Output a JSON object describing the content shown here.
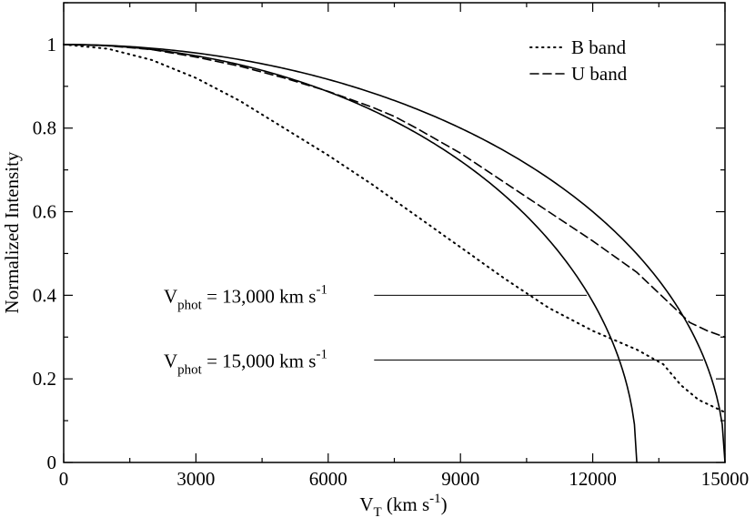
{
  "chart_data": {
    "type": "line",
    "xlabel": "V",
    "xlabel_sub": "T",
    "xlabel_units": " (km s",
    "xlabel_units_sup": "-1",
    "xlabel_units_end": ")",
    "ylabel": "Normalized Intensity",
    "xlim": [
      0,
      15000
    ],
    "ylim": [
      0,
      1.1
    ],
    "x_ticks": [
      0,
      3000,
      6000,
      9000,
      12000,
      15000
    ],
    "x_tick_labels": [
      "0",
      "3000",
      "6000",
      "9000",
      "12000",
      "15000"
    ],
    "y_ticks": [
      0,
      0.2,
      0.4,
      0.6,
      0.8,
      1.0
    ],
    "y_tick_labels": [
      "0",
      "0.2",
      "0.4",
      "0.6",
      "0.8",
      "1"
    ],
    "legend_position": "top-right",
    "grid": false,
    "series": [
      {
        "name": "B band",
        "style": "dotted",
        "x": [
          0,
          1000,
          2000,
          3000,
          4000,
          5000,
          6000,
          7000,
          8000,
          9000,
          10000,
          11000,
          12000,
          13000,
          13600,
          14000,
          14400,
          14700,
          15000
        ],
        "y": [
          1.0,
          0.99,
          0.963,
          0.92,
          0.865,
          0.8,
          0.735,
          0.665,
          0.59,
          0.515,
          0.44,
          0.37,
          0.315,
          0.27,
          0.235,
          0.185,
          0.15,
          0.135,
          0.12
        ]
      },
      {
        "name": "U band",
        "style": "dashed",
        "x": [
          0,
          1000,
          2000,
          3000,
          4000,
          5000,
          6000,
          7000,
          7500,
          8000,
          9000,
          10000,
          11000,
          12000,
          13000,
          13800,
          14200,
          14600,
          15000
        ],
        "y": [
          1.0,
          0.997,
          0.988,
          0.97,
          0.948,
          0.92,
          0.888,
          0.85,
          0.828,
          0.8,
          0.74,
          0.67,
          0.6,
          0.53,
          0.455,
          0.375,
          0.335,
          0.315,
          0.3
        ]
      },
      {
        "name": "",
        "style": "solid",
        "function": "sqrt",
        "vmax": 13000,
        "extra_points": [
          [
            13000,
            0.0
          ]
        ]
      },
      {
        "name": "",
        "style": "solid",
        "function": "sqrt",
        "vmax": 15000,
        "extra_points": [
          [
            15000,
            0.0
          ]
        ]
      }
    ],
    "annotations": [
      {
        "label": "V",
        "sub": "phot",
        "text": " = 13,000 km s",
        "sup": "-1",
        "x": 7000,
        "y": 0.4
      },
      {
        "label": "V",
        "sub": "phot",
        "text": " = 15,000 km s",
        "sup": "-1",
        "x": 7000,
        "y": 0.245
      }
    ]
  }
}
